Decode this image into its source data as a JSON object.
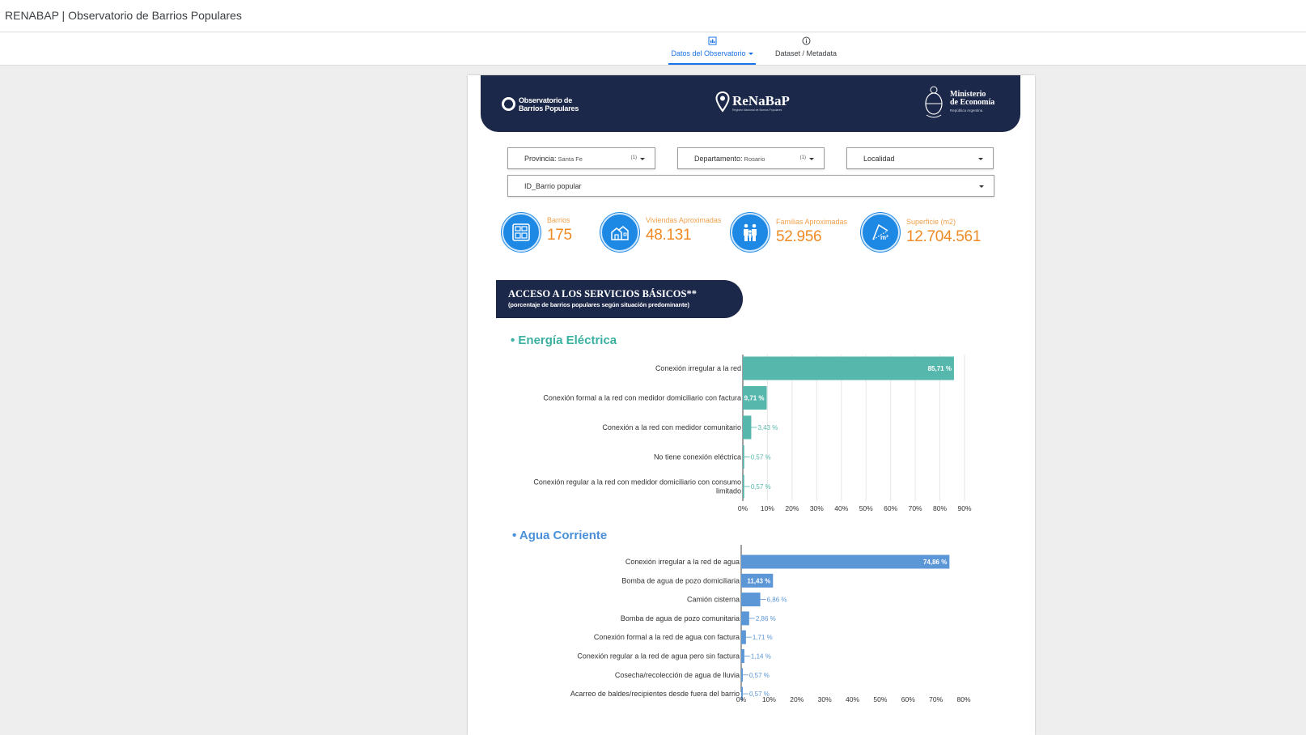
{
  "app": {
    "title": "RENABAP | Observatorio de Barrios Populares"
  },
  "nav": {
    "tabs": [
      {
        "label": "Datos del Observatorio",
        "icon": "report-icon",
        "active": true
      },
      {
        "label": "Dataset / Metadata",
        "icon": "info-icon",
        "active": false
      }
    ]
  },
  "banner": {
    "observatorio": {
      "line1": "Observatorio de",
      "line2": "Barrios Populares"
    },
    "renabap": {
      "name": "ReNaBaP",
      "sub": "Registro Nacional de Barrios Populares"
    },
    "ministerio": {
      "line1": "Ministerio",
      "line2": "de Economía",
      "sub": "República Argentina"
    }
  },
  "filters": {
    "provincia": {
      "label": "Provincia:",
      "value": "Santa Fe",
      "count": "(1)"
    },
    "departamento": {
      "label": "Departamento:",
      "value": "Rosario",
      "count": "(1)"
    },
    "localidad": {
      "label": "Localidad"
    },
    "barrio": {
      "label": "ID_Barrio popular"
    }
  },
  "kpis": {
    "barrios": {
      "label": "Barrios",
      "value": "175",
      "icon": "map-grid-icon"
    },
    "viviendas": {
      "label": "Viviendas Aproximadas",
      "value": "48.131",
      "icon": "houses-icon"
    },
    "familias": {
      "label": "Familias Aproximadas",
      "value": "52.956",
      "icon": "family-icon"
    },
    "superficie": {
      "label": "Superficie (m2)",
      "value": "12.704.561",
      "icon": "area-m2-icon"
    }
  },
  "section": {
    "title": "ACCESO A LOS SERVICIOS BÁSICOS**",
    "subtitle": "(porcentaje de barrios populares según situación predominante)"
  },
  "colors": {
    "energia": "#56b8ac",
    "agua": "#5b96d6",
    "kpi": "#1e88e5",
    "kpi_text": "#f08a24",
    "banner": "#1c2849"
  },
  "chart_data": [
    {
      "type": "bar",
      "orientation": "horizontal",
      "title": "• Energía Eléctrica",
      "categories": [
        "Conexión irregular a la red",
        "Conexión formal a la red con medidor domiciliario con factura",
        "Conexión a la red con medidor comunitario",
        "No tiene conexión eléctrica",
        "Conexión regular a la red con medidor domiciliario con consumo limitado"
      ],
      "values": [
        85.71,
        9.71,
        3.43,
        0.57,
        0.57
      ],
      "data_labels": [
        "85,71 %",
        "9,71 %",
        "3,43 %",
        "0,57 %",
        "0,57 %"
      ],
      "xlim": [
        0,
        90
      ],
      "ticks": [
        "0%",
        "10%",
        "20%",
        "30%",
        "40%",
        "50%",
        "60%",
        "70%",
        "80%",
        "90%"
      ],
      "grid": true
    },
    {
      "type": "bar",
      "orientation": "horizontal",
      "title": "• Agua Corriente",
      "categories": [
        "Conexión irregular a la red de agua",
        "Bomba de agua de pozo domiciliaria",
        "Camión cisterna",
        "Bomba de agua de pozo comunitaria",
        "Conexión formal a la red de agua con factura",
        "Conexión regular a la red de agua pero sin factura",
        "Cosecha/recolección de agua de lluvia",
        "Acarreo de baldes/recipientes desde fuera del barrio"
      ],
      "values": [
        74.86,
        11.43,
        6.86,
        2.86,
        1.71,
        1.14,
        0.57,
        0.57
      ],
      "data_labels": [
        "74,86 %",
        "11,43 %",
        "6,86 %",
        "2,86 %",
        "1,71 %",
        "1,14 %",
        "0,57 %",
        "0,57 %"
      ],
      "xlim": [
        0,
        80
      ],
      "ticks": [
        "0%",
        "10%",
        "20%",
        "30%",
        "40%",
        "50%",
        "60%",
        "70%",
        "80%"
      ],
      "grid": false
    }
  ]
}
